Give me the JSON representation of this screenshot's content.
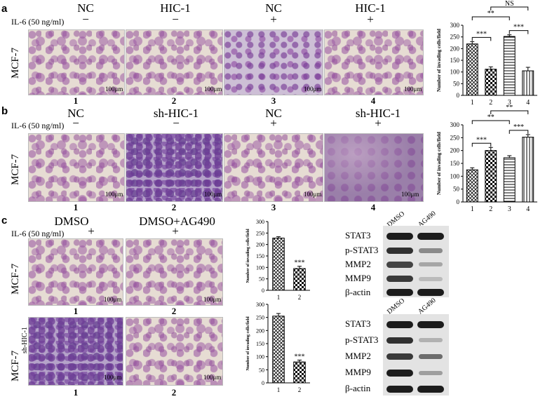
{
  "panels": {
    "a": {
      "letter": "a",
      "il6_label": "IL-6 (50 ng/ml)",
      "cell_line": "MCF-7",
      "columns": [
        {
          "header": "NC",
          "sign": "−",
          "number": "1",
          "scale": "100μm"
        },
        {
          "header": "HIC-1",
          "sign": "−",
          "number": "2",
          "scale": "100μm"
        },
        {
          "header": "NC",
          "sign": "+",
          "number": "3",
          "scale": "100μm"
        },
        {
          "header": "HIC-1",
          "sign": "+",
          "number": "4",
          "scale": "100μm"
        }
      ]
    },
    "b": {
      "letter": "b",
      "il6_label": "IL-6 (50 ng/ml)",
      "cell_line": "MCF-7",
      "columns": [
        {
          "header": "NC",
          "sign": "−",
          "number": "1",
          "scale": "100μm"
        },
        {
          "header": "sh-HIC-1",
          "sign": "−",
          "number": "2",
          "scale": "100μm"
        },
        {
          "header": "NC",
          "sign": "+",
          "number": "3",
          "scale": "100μm"
        },
        {
          "header": "sh-HIC-1",
          "sign": "+",
          "number": "4",
          "scale": "100μm"
        }
      ]
    },
    "c": {
      "letter": "c",
      "il6_label": "IL-6 (50 ng/ml)",
      "cell_lines": [
        "MCF-7",
        "MCF-7",
        "sh-HIC-1"
      ],
      "columns": [
        {
          "header": "DMSO",
          "sign": "+",
          "number": "1",
          "scale": "100μm"
        },
        {
          "header": "DMSO+AG490",
          "sign": "+",
          "number": "2",
          "scale": "100μm"
        }
      ],
      "western_blot": {
        "lanes": [
          "DMSO",
          "AG490"
        ],
        "proteins": [
          "STAT3",
          "p-STAT3",
          "MMP2",
          "MMP9",
          "β-actin"
        ]
      }
    }
  },
  "chart_data": [
    {
      "type": "bar",
      "panel": "a",
      "categories": [
        "1",
        "2",
        "3",
        "4"
      ],
      "values": [
        220,
        112,
        252,
        105
      ],
      "errors": [
        10,
        10,
        7,
        15
      ],
      "ylabel": "Number of invading cells/field",
      "ylim": [
        0,
        300
      ],
      "yticks": [
        0,
        50,
        100,
        150,
        200,
        250,
        300
      ],
      "patterns": [
        "crosshatch",
        "checker",
        "horizontal",
        "vertical"
      ],
      "annotations": [
        {
          "text": "***",
          "from": 1,
          "to": 2,
          "level": 1
        },
        {
          "text": "***",
          "from": 3,
          "to": 4,
          "level": 1
        },
        {
          "text": "**",
          "from": 1,
          "to": 3,
          "level": 2
        },
        {
          "text": "NS",
          "from": 2,
          "to": 4,
          "level": 3
        }
      ]
    },
    {
      "type": "bar",
      "panel": "b",
      "categories": [
        "1",
        "2",
        "3",
        "4"
      ],
      "values": [
        125,
        200,
        172,
        252
      ],
      "errors": [
        8,
        12,
        8,
        10
      ],
      "ylabel": "Number of invading cells/field",
      "ylim": [
        0,
        300
      ],
      "yticks": [
        0,
        50,
        100,
        150,
        200,
        250,
        300
      ],
      "patterns": [
        "crosshatch",
        "checker",
        "horizontal",
        "vertical"
      ],
      "annotations": [
        {
          "text": "***",
          "from": 1,
          "to": 2,
          "level": 1
        },
        {
          "text": "***",
          "from": 3,
          "to": 4,
          "level": 1
        },
        {
          "text": "**",
          "from": 1,
          "to": 3,
          "level": 2
        },
        {
          "text": "**",
          "from": 2,
          "to": 4,
          "level": 3
        }
      ]
    },
    {
      "type": "bar",
      "panel": "c-top",
      "categories": [
        "1",
        "2"
      ],
      "values": [
        228,
        95
      ],
      "errors": [
        6,
        10
      ],
      "ylabel": "Number of invading cells/field",
      "ylim": [
        0,
        300
      ],
      "yticks": [
        0,
        50,
        100,
        150,
        200,
        250,
        300
      ],
      "patterns": [
        "crosshatch",
        "checker"
      ],
      "bar_labels": [
        "",
        "***"
      ]
    },
    {
      "type": "bar",
      "panel": "c-bottom",
      "categories": [
        "1",
        "2"
      ],
      "values": [
        255,
        80
      ],
      "errors": [
        10,
        7
      ],
      "ylabel": "Number of invading cells/field",
      "ylim": [
        0,
        300
      ],
      "yticks": [
        0,
        50,
        100,
        150,
        200,
        250,
        300
      ],
      "patterns": [
        "crosshatch",
        "checker"
      ],
      "bar_labels": [
        "",
        "***"
      ]
    }
  ]
}
